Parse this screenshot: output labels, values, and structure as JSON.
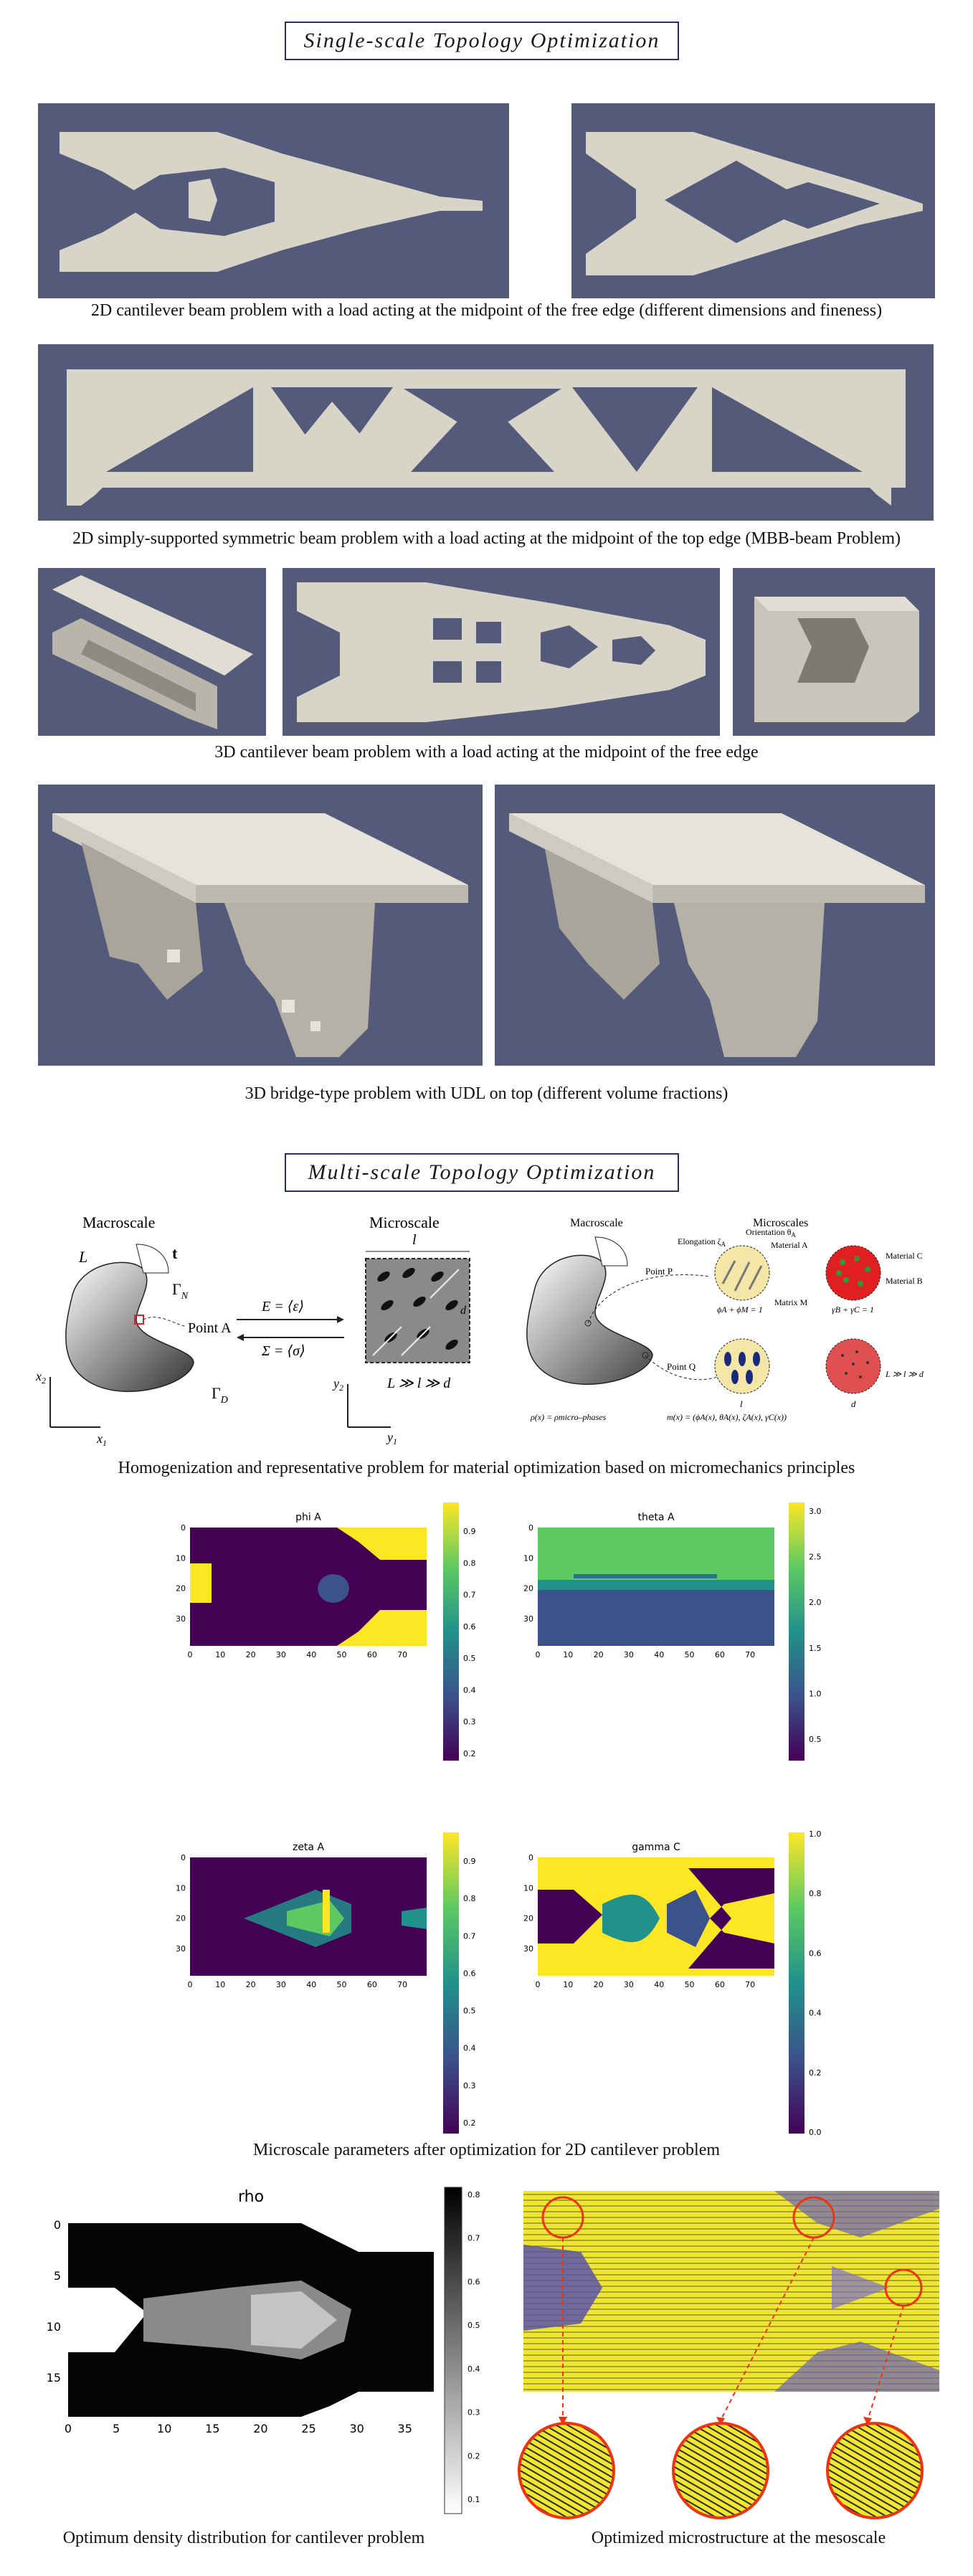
{
  "single_scale": {
    "title": "Single-scale Topology Optimization",
    "captions": {
      "cantilever_2d": "2D cantilever beam problem with a load acting at the midpoint of the free edge (different dimensions and fineness)",
      "mbb": "2D simply-supported symmetric beam problem with a load acting at the midpoint of the top edge (MBB-beam Problem)",
      "cantilever_3d": "3D cantilever beam problem with a load acting at the midpoint of the free edge",
      "bridge": "3D bridge-type problem with UDL on top (different volume fractions)"
    }
  },
  "multi_scale": {
    "title": "Multi-scale Topology Optimization",
    "diagram": {
      "left_title": "Macroscale",
      "mid_title": "Microscale",
      "L": "L",
      "t": "t",
      "gamma_n": "Γ",
      "gamma_n_sub": "N",
      "gamma_d": "Γ",
      "gamma_d_sub": "D",
      "point_a": "Point A",
      "x1": "x",
      "x1_sub": "1",
      "x2": "x",
      "x2_sub": "2",
      "y1": "y",
      "y1_sub": "1",
      "y2": "y",
      "y2_sub": "2",
      "eq_top": "E = ⟨ε⟩",
      "eq_bottom": "Σ = ⟨σ⟩",
      "l": "l",
      "d": "d",
      "scale_rel": "L ≫ l ≫ d",
      "right_macro": "Macroscale",
      "right_micro": "Microscales",
      "elongation": "Elongation ζ",
      "elongation_sub": "A",
      "orientation": "Orientation θ",
      "orientation_sub": "A",
      "material_a": "Material A",
      "material_b": "Material B",
      "material_c": "Material C",
      "matrix_m": "Matrix M",
      "point_p": "Point P",
      "point_q": "Point Q",
      "phi_sum": "ϕA + ϕM = 1",
      "gamma_sum": "γB + γC = 1",
      "rho_eq": "ρ(x) = ρmicro–phases",
      "m_eq": "m(x) = (ϕA(x), θA(x), ζA(x), γC(x))",
      "scale_rel2": "L ≫ l ≫ d",
      "l2": "l",
      "d2": "d"
    },
    "captions": {
      "homogenization": "Homogenization and representative problem for material optimization based on micromechanics principles",
      "microscale_params": "Microscale parameters after optimization for 2D cantilever problem",
      "density": "Optimum density distribution for cantilever problem",
      "microstructure": "Optimized microstructure at the mesoscale"
    },
    "plots": {
      "phi_a": {
        "title": "phi A",
        "cbar": [
          "0.9",
          "0.8",
          "0.7",
          "0.6",
          "0.5",
          "0.4",
          "0.3",
          "0.2"
        ]
      },
      "theta_a": {
        "title": "theta A",
        "cbar": [
          "3.0",
          "2.5",
          "2.0",
          "1.5",
          "1.0",
          "0.5"
        ]
      },
      "zeta_a": {
        "title": "zeta A",
        "cbar": [
          "0.9",
          "0.8",
          "0.7",
          "0.6",
          "0.5",
          "0.4",
          "0.3",
          "0.2"
        ]
      },
      "gamma_c": {
        "title": "gamma C",
        "cbar": [
          "1.0",
          "0.8",
          "0.6",
          "0.4",
          "0.2",
          "0.0"
        ]
      },
      "xticks": [
        "0",
        "10",
        "20",
        "30",
        "40",
        "50",
        "60",
        "70"
      ],
      "yticks": [
        "0",
        "10",
        "20",
        "30"
      ],
      "rho": {
        "title": "rho",
        "xticks": [
          "0",
          "5",
          "10",
          "15",
          "20",
          "25",
          "30",
          "35"
        ],
        "yticks": [
          "0",
          "5",
          "10",
          "15"
        ],
        "cbar": [
          "0.8",
          "0.7",
          "0.6",
          "0.5",
          "0.4",
          "0.3",
          "0.2",
          "0.1"
        ]
      }
    }
  },
  "colors": {
    "panel_bg": "#545a7a",
    "solid": "#d8d4c8",
    "title_border": "#2a2f57"
  }
}
